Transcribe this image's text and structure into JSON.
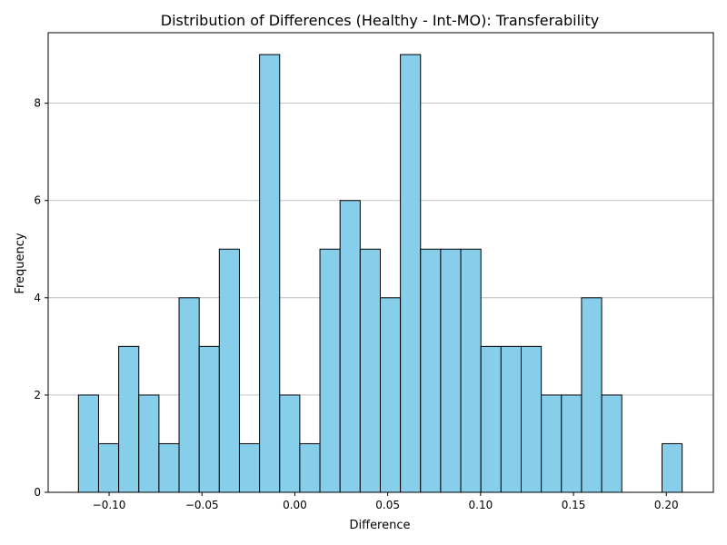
{
  "chart_data": {
    "type": "bar",
    "title": "Distribution of Differences (Healthy - Int-MO): Transferability",
    "xlabel": "Difference",
    "ylabel": "Frequency",
    "bin_start": -0.1165,
    "bin_width": 0.010833,
    "values": [
      2,
      1,
      3,
      2,
      1,
      4,
      3,
      5,
      1,
      9,
      2,
      1,
      5,
      6,
      5,
      4,
      9,
      5,
      5,
      5,
      3,
      3,
      3,
      2,
      2,
      4,
      2,
      0,
      0,
      1
    ],
    "xlim": [
      -0.1328,
      0.2253
    ],
    "ylim": [
      0,
      9.45
    ],
    "x_ticks": [
      -0.1,
      -0.05,
      0.0,
      0.05,
      0.1,
      0.15,
      0.2
    ],
    "x_tick_labels": [
      "−0.10",
      "−0.05",
      "0.00",
      "0.05",
      "0.10",
      "0.15",
      "0.20"
    ],
    "y_ticks": [
      0,
      2,
      4,
      6,
      8
    ],
    "y_tick_labels": [
      "0",
      "2",
      "4",
      "6",
      "8"
    ],
    "grid": "y",
    "bar_color": "#87CEEB",
    "edge_color": "#000000"
  }
}
